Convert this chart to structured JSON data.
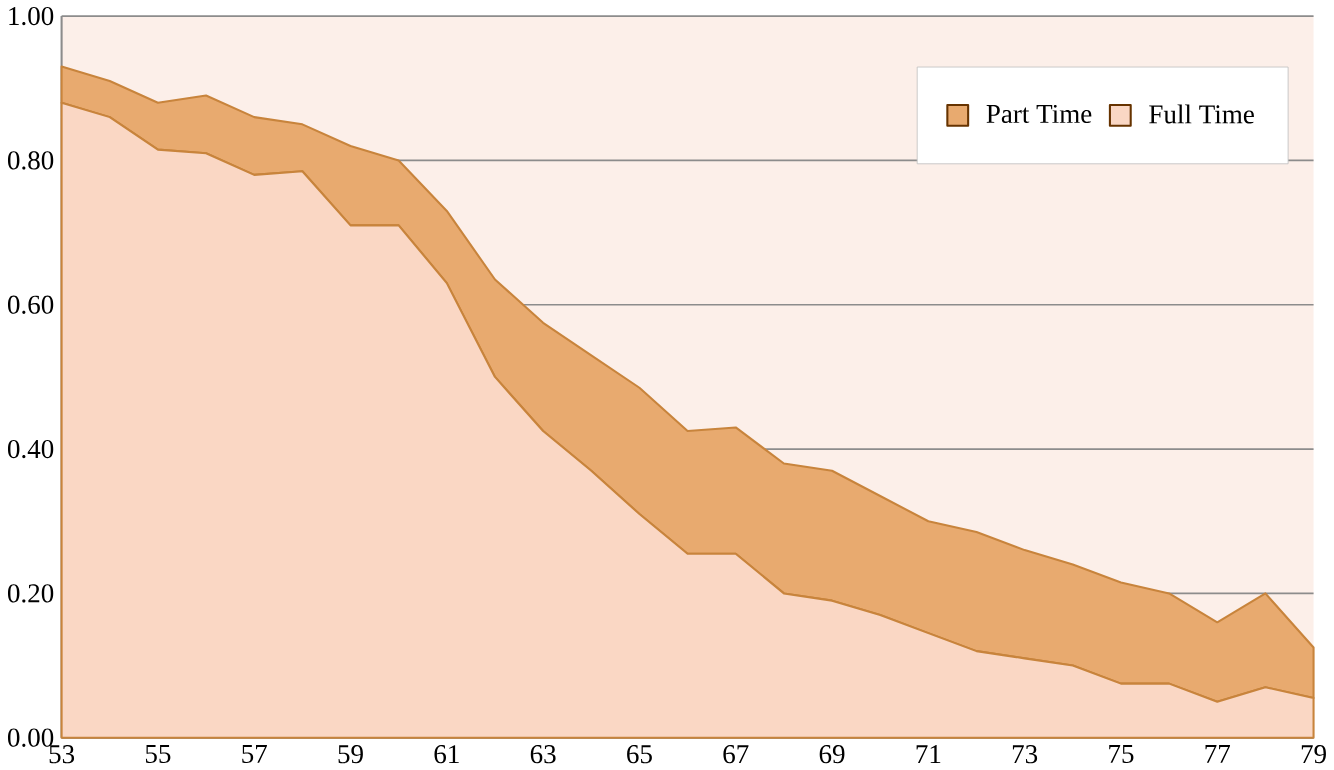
{
  "chart_data": {
    "type": "area",
    "stacked": true,
    "x": [
      53,
      54,
      55,
      56,
      57,
      58,
      59,
      60,
      61,
      62,
      63,
      64,
      65,
      66,
      67,
      68,
      69,
      70,
      71,
      72,
      73,
      74,
      75,
      76,
      77,
      78,
      79
    ],
    "series": [
      {
        "name": "Full Time",
        "color": "#fad7c4",
        "values": [
          0.88,
          0.86,
          0.815,
          0.81,
          0.78,
          0.785,
          0.71,
          0.71,
          0.63,
          0.5,
          0.425,
          0.37,
          0.31,
          0.255,
          0.255,
          0.2,
          0.19,
          0.17,
          0.145,
          0.12,
          0.11,
          0.1,
          0.075,
          0.075,
          0.05,
          0.07,
          0.055
        ]
      },
      {
        "name": "Part Time",
        "color": "#e8aa6f",
        "values": [
          0.05,
          0.05,
          0.065,
          0.08,
          0.08,
          0.065,
          0.11,
          0.09,
          0.1,
          0.135,
          0.15,
          0.16,
          0.175,
          0.17,
          0.175,
          0.18,
          0.18,
          0.165,
          0.155,
          0.165,
          0.15,
          0.14,
          0.14,
          0.125,
          0.11,
          0.13,
          0.07
        ]
      }
    ],
    "xlim": [
      53,
      79
    ],
    "xticks": [
      53,
      55,
      57,
      59,
      61,
      63,
      65,
      67,
      69,
      71,
      73,
      75,
      77,
      79
    ],
    "ylim": [
      0,
      1
    ],
    "yticks": [
      {
        "value": 0,
        "label": "0.00"
      },
      {
        "value": 0.2,
        "label": "0.20"
      },
      {
        "value": 0.4,
        "label": "0.40"
      },
      {
        "value": 0.6,
        "label": "0.60"
      },
      {
        "value": 0.8,
        "label": "0.80"
      },
      {
        "value": 1,
        "label": "1.00"
      }
    ],
    "grid": "y",
    "legend": "top right"
  }
}
